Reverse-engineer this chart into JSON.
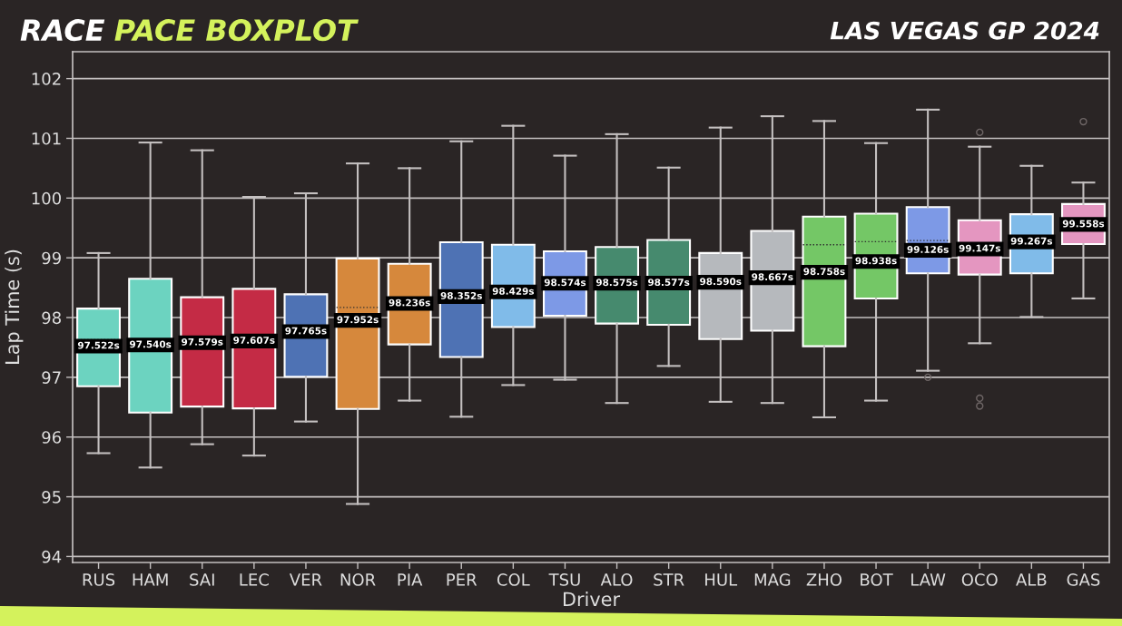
{
  "chart_data": {
    "type": "box",
    "title": "RACE PACE BOXPLOT",
    "subtitle": "LAS VEGAS GP 2024",
    "xlabel": "Driver",
    "ylabel": "Lap Time (s)",
    "categories": [
      "RUS",
      "HAM",
      "SAI",
      "LEC",
      "VER",
      "NOR",
      "PIA",
      "PER",
      "COL",
      "TSU",
      "ALO",
      "STR",
      "HUL",
      "MAG",
      "ZHO",
      "BOT",
      "LAW",
      "OCO",
      "ALB",
      "GAS"
    ],
    "boxes": [
      {
        "low": 95.73,
        "q1": 96.85,
        "median": 97.522,
        "q3": 98.15,
        "high": 99.08,
        "mean": 97.63
      },
      {
        "low": 95.49,
        "q1": 96.41,
        "median": 97.54,
        "q3": 98.65,
        "high": 100.93
      },
      {
        "low": 95.88,
        "q1": 96.51,
        "median": 97.579,
        "q3": 98.34,
        "high": 100.8
      },
      {
        "low": 95.69,
        "q1": 96.48,
        "median": 97.607,
        "q3": 98.48,
        "high": 100.02
      },
      {
        "low": 96.26,
        "q1": 97.01,
        "median": 97.765,
        "q3": 98.39,
        "high": 100.08
      },
      {
        "low": 94.88,
        "q1": 96.47,
        "median": 97.952,
        "q3": 98.99,
        "high": 100.58,
        "mean": 98.17
      },
      {
        "low": 96.61,
        "q1": 97.55,
        "median": 98.236,
        "q3": 98.9,
        "high": 100.5
      },
      {
        "low": 96.34,
        "q1": 97.34,
        "median": 98.352,
        "q3": 99.26,
        "high": 100.95
      },
      {
        "low": 96.87,
        "q1": 97.84,
        "median": 98.429,
        "q3": 99.22,
        "high": 101.21
      },
      {
        "low": 96.96,
        "q1": 98.03,
        "median": 98.574,
        "q3": 99.11,
        "high": 100.71
      },
      {
        "low": 96.57,
        "q1": 97.9,
        "median": 98.575,
        "q3": 99.18,
        "high": 101.07
      },
      {
        "low": 97.19,
        "q1": 97.88,
        "median": 98.577,
        "q3": 99.3,
        "high": 100.51
      },
      {
        "low": 96.59,
        "q1": 97.64,
        "median": 98.59,
        "q3": 99.08,
        "high": 101.18
      },
      {
        "low": 96.57,
        "q1": 97.78,
        "median": 98.667,
        "q3": 99.45,
        "high": 101.37
      },
      {
        "low": 96.33,
        "q1": 97.52,
        "median": 98.758,
        "q3": 99.69,
        "high": 101.29,
        "mean": 99.22
      },
      {
        "low": 96.61,
        "q1": 98.32,
        "median": 98.938,
        "q3": 99.74,
        "high": 100.92,
        "mean": 99.27
      },
      {
        "low": 97.11,
        "q1": 98.74,
        "median": 99.126,
        "q3": 99.85,
        "high": 101.48,
        "mean": 99.29,
        "outliers": [
          97.0
        ]
      },
      {
        "low": 97.57,
        "q1": 98.72,
        "median": 99.147,
        "q3": 99.63,
        "high": 100.86,
        "mean": 99.18,
        "outliers": [
          101.1,
          96.65,
          96.52
        ]
      },
      {
        "low": 98.01,
        "q1": 98.74,
        "median": 99.267,
        "q3": 99.73,
        "high": 100.54
      },
      {
        "low": 98.32,
        "q1": 99.23,
        "median": 99.558,
        "q3": 99.9,
        "high": 100.26,
        "outliers": [
          101.28
        ]
      }
    ],
    "colors": [
      "#6cd3c0",
      "#6cd3c0",
      "#c42b45",
      "#c42b45",
      "#4e72b4",
      "#d6883c",
      "#d6883c",
      "#4e72b4",
      "#80bbe9",
      "#7d99e6",
      "#468a6e",
      "#468a6e",
      "#b6b9bd",
      "#b6b9bd",
      "#74c766",
      "#74c766",
      "#7d99e6",
      "#e496c0",
      "#80bbe9",
      "#e496c0"
    ],
    "value_labels": [
      "97.522s",
      "97.540s",
      "97.579s",
      "97.607s",
      "97.765s",
      "97.952s",
      "98.236s",
      "98.352s",
      "98.429s",
      "98.574s",
      "98.575s",
      "98.577s",
      "98.590s",
      "98.667s",
      "98.758s",
      "98.938s",
      "99.126s",
      "99.147s",
      "99.267s",
      "99.558s"
    ],
    "ylim": [
      93.9,
      102.45
    ],
    "yticks": [
      94,
      95,
      96,
      97,
      98,
      99,
      100,
      101,
      102
    ],
    "grid": "y"
  }
}
